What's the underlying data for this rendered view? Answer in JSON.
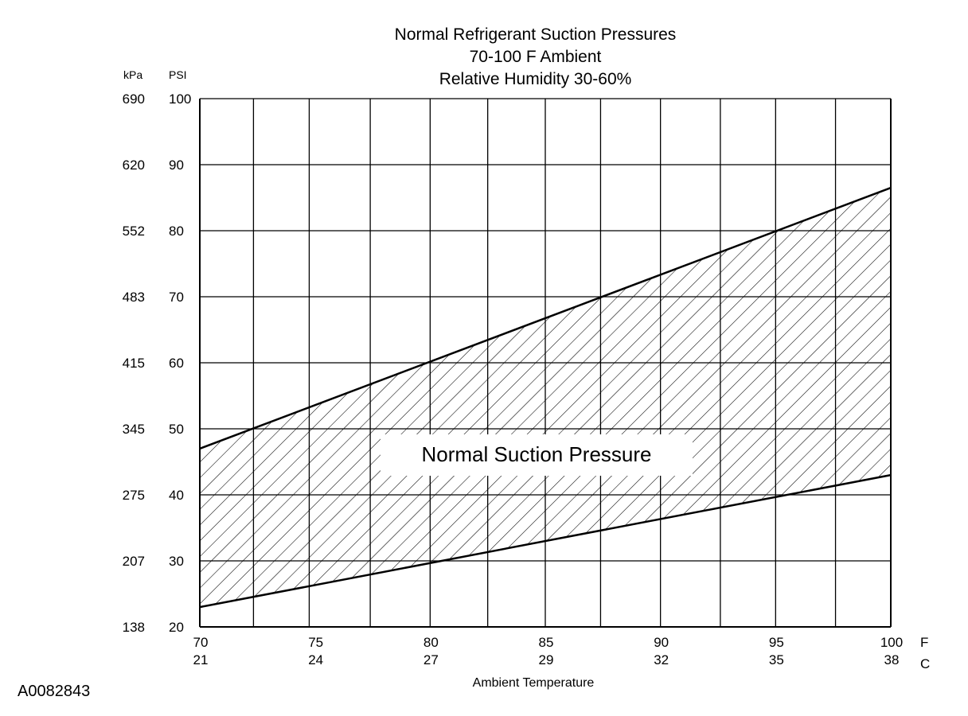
{
  "chart_data": {
    "type": "area",
    "title_lines": [
      "Normal  Refrigerant  Suction  Pressures",
      "70-100 F Ambient",
      "Relative Humidity 30-60%"
    ],
    "xlabel": "Ambient Temperature",
    "x_unit_f": "F",
    "x_unit_c": "C",
    "xlim": [
      70,
      100
    ],
    "ylim": [
      20,
      100
    ],
    "x_ticks": [
      {
        "f": "70",
        "c": "21",
        "v": 70
      },
      {
        "f": "75",
        "c": "24",
        "v": 75
      },
      {
        "f": "80",
        "c": "27",
        "v": 80
      },
      {
        "f": "85",
        "c": "29",
        "v": 85
      },
      {
        "f": "90",
        "c": "32",
        "v": 90
      },
      {
        "f": "95",
        "c": "35",
        "v": 95
      },
      {
        "f": "100",
        "c": "38",
        "v": 100
      }
    ],
    "x_gridlines": [
      70,
      72.33,
      74.75,
      77.4,
      80,
      82.5,
      85,
      87.4,
      90,
      92.6,
      95,
      97.6,
      100
    ],
    "y_unit_kpa": "kPa",
    "y_unit_psi": "PSI",
    "y_ticks": [
      {
        "psi": "100",
        "kpa": "690",
        "v": 100
      },
      {
        "psi": "90",
        "kpa": "620",
        "v": 90
      },
      {
        "psi": "80",
        "kpa": "552",
        "v": 80
      },
      {
        "psi": "70",
        "kpa": "483",
        "v": 70
      },
      {
        "psi": "60",
        "kpa": "415",
        "v": 60
      },
      {
        "psi": "50",
        "kpa": "345",
        "v": 50
      },
      {
        "psi": "40",
        "kpa": "275",
        "v": 40
      },
      {
        "psi": "30",
        "kpa": "207",
        "v": 30
      },
      {
        "psi": "20",
        "kpa": "138",
        "v": 20
      }
    ],
    "series": [
      {
        "name": "upper",
        "x": [
          70,
          100
        ],
        "y": [
          47,
          86.5
        ]
      },
      {
        "name": "lower",
        "x": [
          70,
          100
        ],
        "y": [
          23,
          43
        ]
      }
    ],
    "region_label": "Normal Suction Pressure",
    "grid": true
  },
  "figure_id": "A0082843"
}
